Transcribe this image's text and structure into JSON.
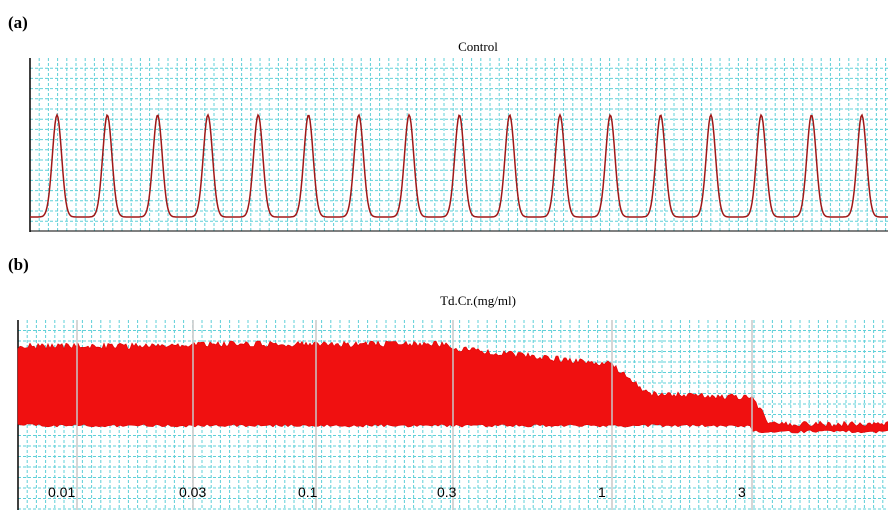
{
  "panels": [
    {
      "label": "(a)",
      "title": "Control"
    },
    {
      "label": "(b)",
      "title": "Td.Cr.(mg/ml)",
      "markers": [
        "0.01",
        "0.03",
        "0.1",
        "0.3",
        "1",
        "3"
      ]
    }
  ]
}
